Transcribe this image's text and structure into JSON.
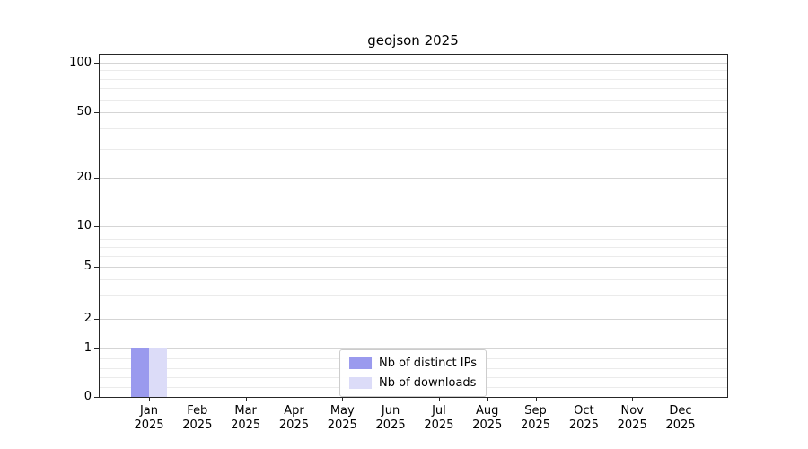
{
  "chart_data": {
    "type": "bar",
    "title": "geojson 2025",
    "categories": [
      "Jan",
      "Feb",
      "Mar",
      "Apr",
      "May",
      "Jun",
      "Jul",
      "Aug",
      "Sep",
      "Oct",
      "Nov",
      "Dec"
    ],
    "year_label": "2025",
    "series": [
      {
        "name": "Nb of distinct IPs",
        "color": "#9a9aee",
        "values": [
          1,
          0,
          0,
          0,
          0,
          0,
          0,
          0,
          0,
          0,
          0,
          0
        ]
      },
      {
        "name": "Nb of downloads",
        "color": "#dcdcf8",
        "values": [
          1,
          0,
          0,
          0,
          0,
          0,
          0,
          0,
          0,
          0,
          0,
          0
        ]
      }
    ],
    "yticks": [
      0,
      1,
      2,
      5,
      10,
      20,
      50,
      100
    ],
    "yscale": "symlog",
    "ylim": [
      0,
      120
    ],
    "xlabel": "",
    "ylabel": "",
    "grid": "on",
    "legend_position": "lower center"
  }
}
